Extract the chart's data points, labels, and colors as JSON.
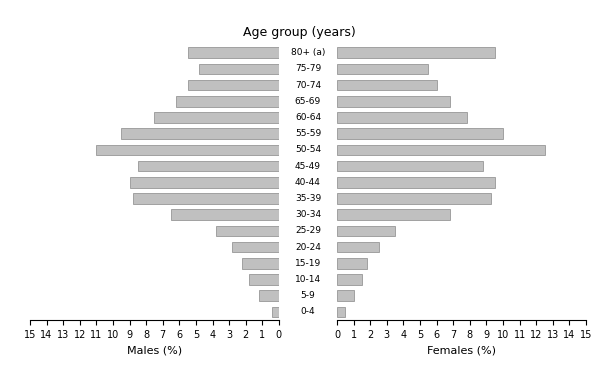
{
  "age_groups": [
    "0-4",
    "5-9",
    "10-14",
    "15-19",
    "20-24",
    "25-29",
    "30-34",
    "35-39",
    "40-44",
    "45-49",
    "50-54",
    "55-59",
    "60-64",
    "65-69",
    "70-74",
    "75-79",
    "80+ (a)"
  ],
  "males": [
    0.4,
    1.2,
    1.8,
    2.2,
    2.8,
    3.8,
    6.5,
    8.8,
    9.0,
    8.5,
    11.0,
    9.5,
    7.5,
    6.2,
    5.5,
    4.8,
    5.5
  ],
  "females": [
    0.5,
    1.0,
    1.5,
    1.8,
    2.5,
    3.5,
    6.8,
    9.3,
    9.5,
    8.8,
    12.5,
    10.0,
    7.8,
    6.8,
    6.0,
    5.5,
    9.5
  ],
  "bar_color": "#c0c0c0",
  "bar_edge_color": "#888888",
  "title": "Age group (years)",
  "xlabel_left": "Males (%)",
  "xlabel_right": "Females (%)",
  "xlim": 15,
  "xticks": [
    0,
    1,
    2,
    3,
    4,
    5,
    6,
    7,
    8,
    9,
    10,
    11,
    12,
    13,
    14,
    15
  ],
  "background_color": "#ffffff",
  "bar_height": 0.65
}
